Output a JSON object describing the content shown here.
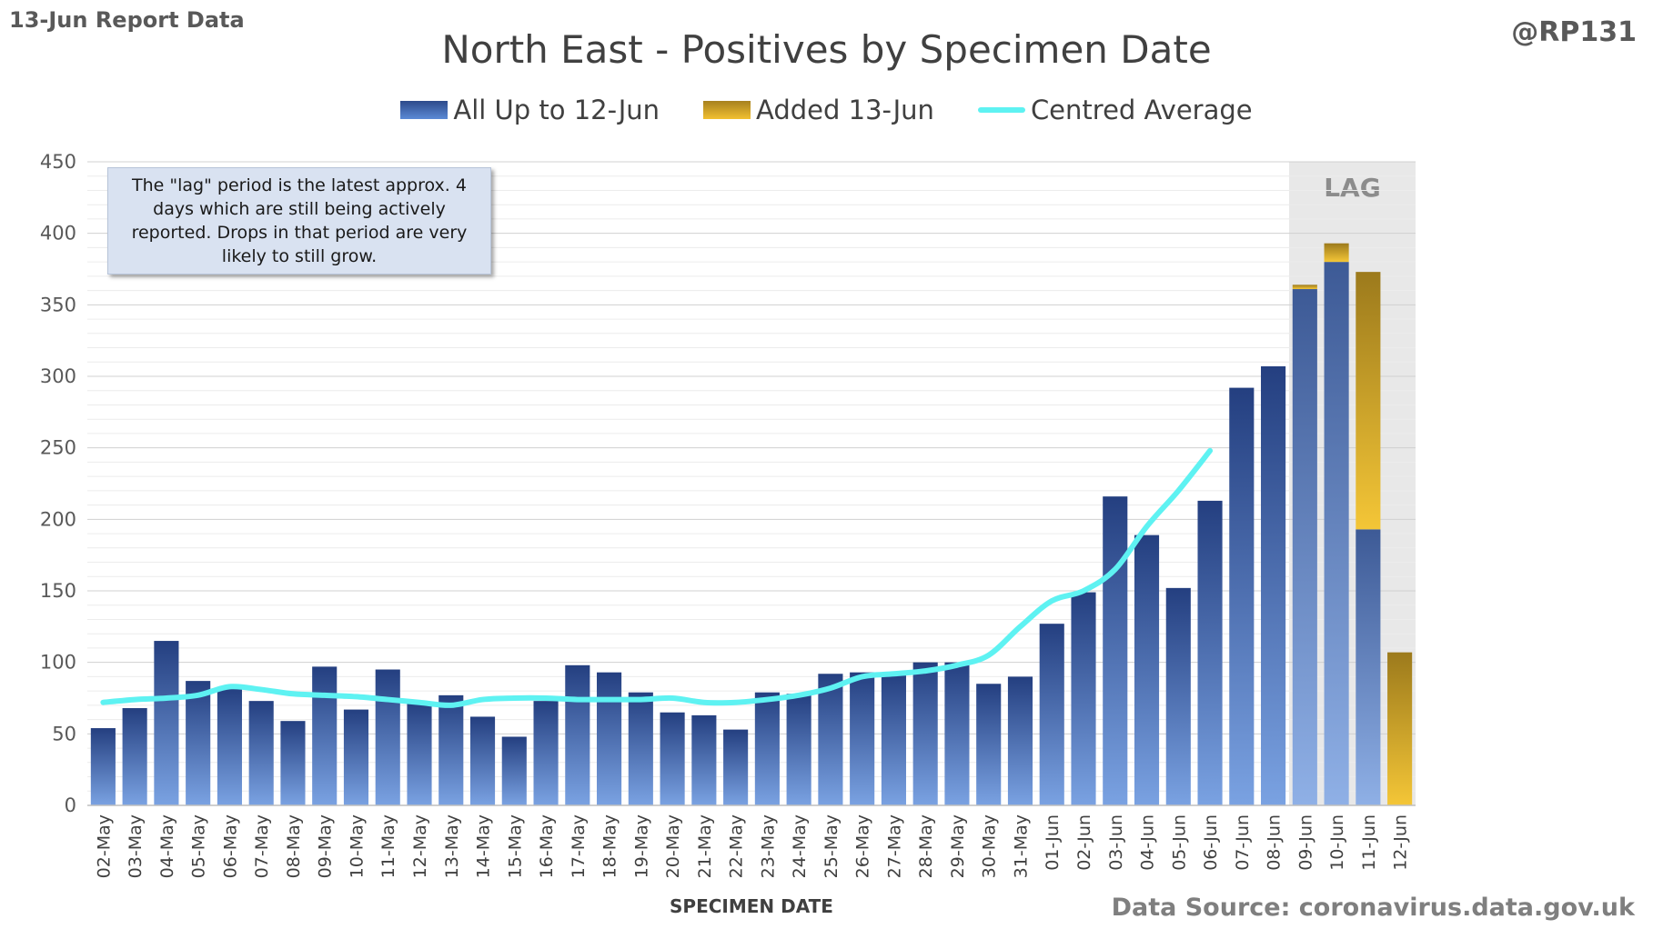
{
  "header": {
    "report_label": "13-Jun Report Data",
    "handle": "@RP131",
    "source": "Data Source: coronavirus.data.gov.uk"
  },
  "note": "The \"lag\" period is the latest approx. 4 days which are still being actively reported.  Drops in that period are very likely to still grow.",
  "colors": {
    "base_top": "#2d4a8a",
    "base_bottom": "#6f9ae0",
    "added_top": "#a6811f",
    "added_bottom": "#f2c030",
    "average": "#5ef2f2",
    "lag_band": "#e8e8e8"
  },
  "chart_data": {
    "type": "bar",
    "title": "North East - Positives by Specimen Date",
    "xlabel": "SPECIMEN DATE",
    "ylabel": "",
    "ylim": [
      0,
      450
    ],
    "yticks": [
      0,
      50,
      100,
      150,
      200,
      250,
      300,
      350,
      400,
      450
    ],
    "grid": true,
    "legend_position": "top",
    "lag_label": "LAG",
    "lag_categories": [
      "09-Jun",
      "10-Jun",
      "11-Jun",
      "12-Jun"
    ],
    "categories": [
      "02-May",
      "03-May",
      "04-May",
      "05-May",
      "06-May",
      "07-May",
      "08-May",
      "09-May",
      "10-May",
      "11-May",
      "12-May",
      "13-May",
      "14-May",
      "15-May",
      "16-May",
      "17-May",
      "18-May",
      "19-May",
      "20-May",
      "21-May",
      "22-May",
      "23-May",
      "24-May",
      "25-May",
      "26-May",
      "27-May",
      "28-May",
      "29-May",
      "30-May",
      "31-May",
      "01-Jun",
      "02-Jun",
      "03-Jun",
      "04-Jun",
      "05-Jun",
      "06-Jun",
      "07-Jun",
      "08-Jun",
      "09-Jun",
      "10-Jun",
      "11-Jun",
      "12-Jun"
    ],
    "series": [
      {
        "name": "All Up to 12-Jun",
        "stacked": true,
        "values": [
          54,
          68,
          115,
          87,
          82,
          73,
          59,
          97,
          67,
          95,
          72,
          77,
          62,
          48,
          73,
          98,
          93,
          79,
          65,
          63,
          53,
          79,
          78,
          92,
          93,
          92,
          100,
          100,
          85,
          90,
          127,
          149,
          216,
          189,
          152,
          213,
          292,
          307,
          361,
          380,
          193,
          0
        ]
      },
      {
        "name": "Added 13-Jun",
        "stacked": true,
        "values": [
          0,
          0,
          0,
          0,
          0,
          0,
          0,
          0,
          0,
          0,
          0,
          0,
          0,
          0,
          0,
          0,
          0,
          0,
          0,
          0,
          0,
          0,
          0,
          0,
          0,
          0,
          0,
          0,
          0,
          0,
          0,
          0,
          0,
          0,
          0,
          0,
          0,
          0,
          3,
          13,
          180,
          107
        ]
      },
      {
        "name": "Centred Average",
        "type": "line",
        "values": [
          72,
          74,
          75,
          77,
          83,
          81,
          78,
          77,
          76,
          74,
          72,
          70,
          74,
          75,
          75,
          74,
          74,
          74,
          75,
          72,
          72,
          74,
          77,
          82,
          90,
          92,
          94,
          98,
          105,
          125,
          143,
          150,
          165,
          195,
          220,
          248,
          null,
          null,
          null,
          null,
          null,
          null
        ]
      }
    ]
  }
}
